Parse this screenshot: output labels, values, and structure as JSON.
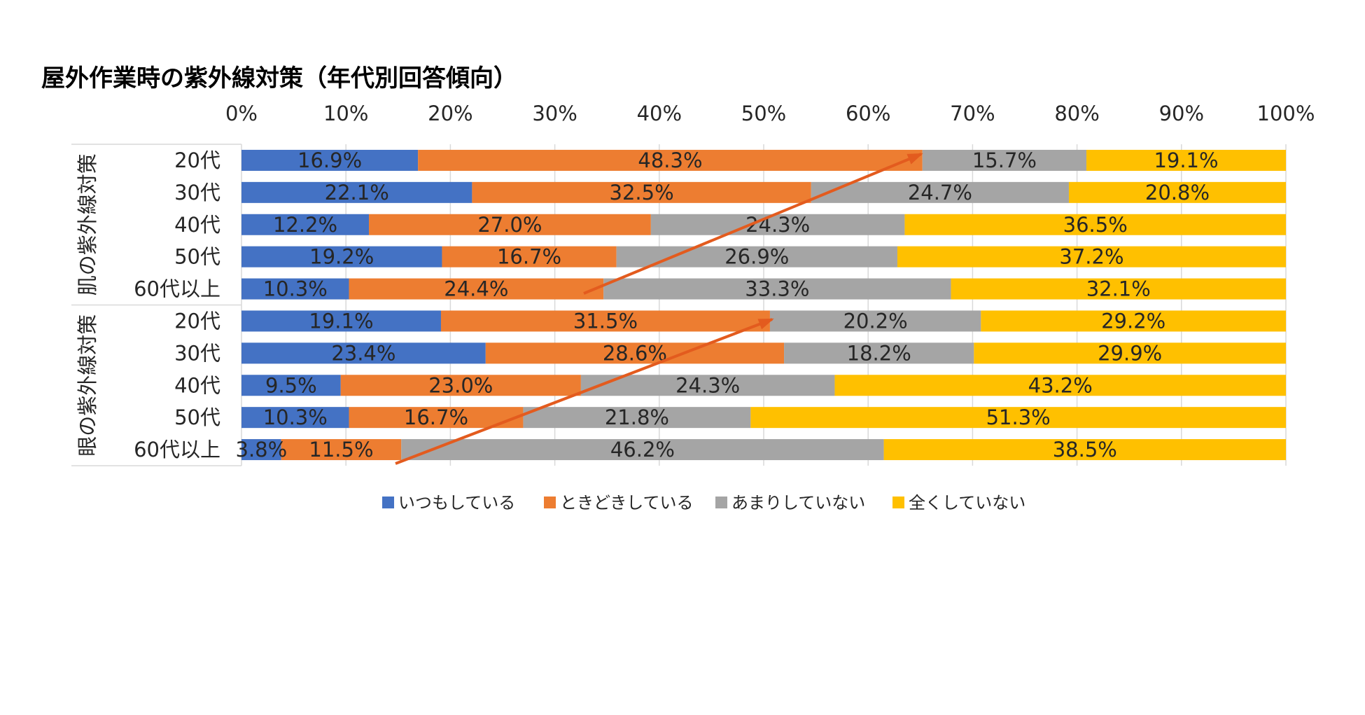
{
  "chart_data": {
    "type": "bar",
    "orientation": "horizontal",
    "stacking": "100% stacked",
    "title": "屋外作業時の紫外線対策（年代別回答傾向）",
    "xlabel": "",
    "ylabel": "",
    "xlim": [
      0,
      100
    ],
    "x_ticks": [
      0,
      10,
      20,
      30,
      40,
      50,
      60,
      70,
      80,
      90,
      100
    ],
    "x_tick_labels": [
      "0%",
      "10%",
      "20%",
      "30%",
      "40%",
      "50%",
      "60%",
      "70%",
      "80%",
      "90%",
      "100%"
    ],
    "grid": true,
    "legend_position": "bottom",
    "arrow_color": "#E35B1E",
    "groups": [
      {
        "label": "肌の紫外線対策",
        "categories": [
          "20代",
          "30代",
          "40代",
          "50代",
          "60代以上"
        ]
      },
      {
        "label": "眼の紫外線対策",
        "categories": [
          "20代",
          "30代",
          "40代",
          "50代",
          "60代以上"
        ]
      }
    ],
    "series": [
      {
        "name": "いつもしている",
        "color": "#4472C4",
        "values": [
          16.9,
          22.1,
          12.2,
          19.2,
          10.3,
          19.1,
          23.4,
          9.5,
          10.3,
          3.8
        ]
      },
      {
        "name": "ときどきしている",
        "color": "#ED7D31",
        "values": [
          48.3,
          32.5,
          27.0,
          16.7,
          24.4,
          31.5,
          28.6,
          23.0,
          16.7,
          11.5
        ]
      },
      {
        "name": "あまりしていない",
        "color": "#A5A5A5",
        "values": [
          15.7,
          24.7,
          24.3,
          26.9,
          33.3,
          20.2,
          18.2,
          24.3,
          21.8,
          46.2
        ]
      },
      {
        "name": "全くしていない",
        "color": "#FFC000",
        "values": [
          19.1,
          20.8,
          36.5,
          37.2,
          32.1,
          29.2,
          29.9,
          43.2,
          51.3,
          38.5
        ]
      }
    ]
  }
}
